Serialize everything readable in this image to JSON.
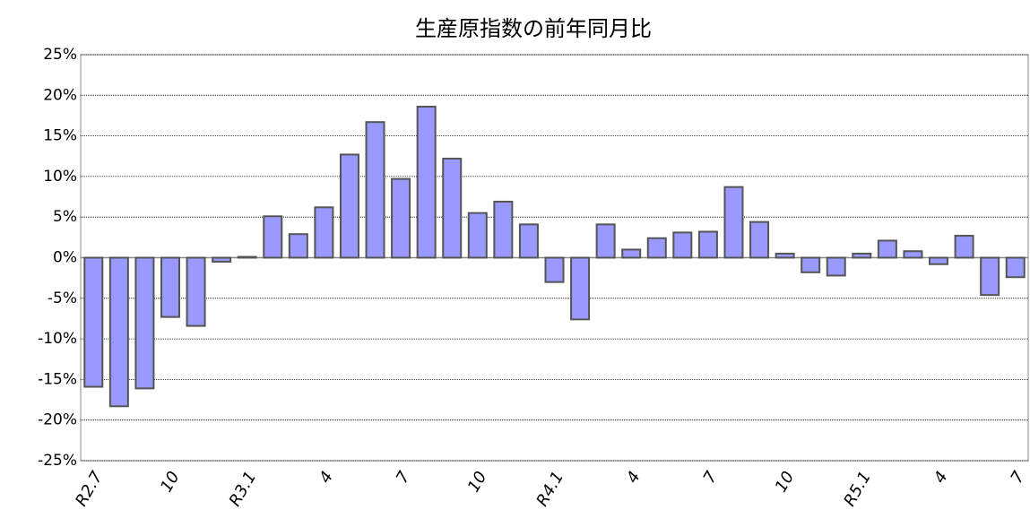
{
  "chart_data": {
    "type": "bar",
    "title": "生産原指数の前年同月比",
    "categories": [
      "R2.7",
      null,
      null,
      "10",
      null,
      null,
      "R3.1",
      null,
      null,
      "4",
      null,
      null,
      "7",
      null,
      null,
      "10",
      null,
      null,
      "R4.1",
      null,
      null,
      "4",
      null,
      null,
      "7",
      null,
      null,
      "10",
      null,
      null,
      "R5.1",
      null,
      null,
      "4",
      null,
      null,
      "7"
    ],
    "values": [
      -15.9,
      -18.3,
      -16.1,
      -7.3,
      -8.4,
      -0.5,
      0.1,
      5.1,
      2.9,
      6.2,
      12.7,
      16.7,
      9.7,
      18.6,
      12.2,
      5.5,
      6.9,
      4.1,
      -3.0,
      -7.6,
      4.1,
      1.0,
      2.4,
      3.1,
      3.2,
      8.7,
      4.4,
      0.5,
      -1.8,
      -2.2,
      0.5,
      2.1,
      0.8,
      -0.8,
      2.7,
      -4.6,
      -2.4
    ],
    "color": "#9999ff",
    "ylim": [
      -25,
      25
    ],
    "yticks": [
      {
        "value": -25,
        "label": "-25%"
      },
      {
        "value": -20,
        "label": "-20%"
      },
      {
        "value": -15,
        "label": "-15%"
      },
      {
        "value": -10,
        "label": "-10%"
      },
      {
        "value": -5,
        "label": "-5%"
      },
      {
        "value": 0,
        "label": "0%"
      },
      {
        "value": 5,
        "label": "5%"
      },
      {
        "value": 10,
        "label": "10%"
      },
      {
        "value": 15,
        "label": "15%"
      },
      {
        "value": 20,
        "label": "20%"
      },
      {
        "value": 25,
        "label": "25%"
      }
    ],
    "grid": true
  }
}
